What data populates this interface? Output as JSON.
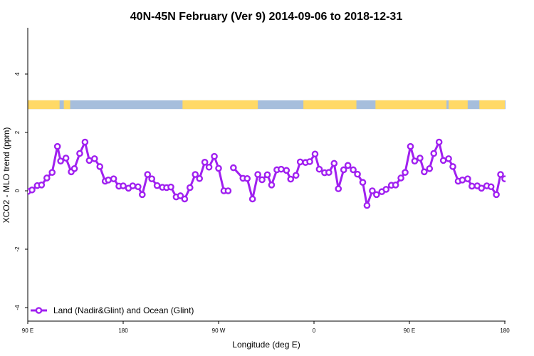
{
  "chart_data": {
    "type": "line",
    "title": "40N-45N February (Ver 9)   2014-09-06 to 2018-12-31",
    "xlabel": "Longitude (deg E)",
    "ylabel": "XCO2 - MLO trend (ppm)",
    "xlim": [
      90,
      450
    ],
    "ylim": [
      -4.5,
      5.6
    ],
    "x_ticks": [
      {
        "value": 90,
        "label": "90 E"
      },
      {
        "value": 180,
        "label": "180"
      },
      {
        "value": 270,
        "label": "90 W"
      },
      {
        "value": 360,
        "label": "0"
      },
      {
        "value": 450,
        "label": "90 E"
      },
      {
        "value": 540,
        "label": "180"
      }
    ],
    "y_ticks": [
      {
        "value": -4,
        "label": "-4"
      },
      {
        "value": -2,
        "label": "-2"
      },
      {
        "value": 0,
        "label": "0"
      },
      {
        "value": 2,
        "label": "2"
      },
      {
        "value": 4,
        "label": "4"
      }
    ],
    "grid": false,
    "legend_position": "bottom-left",
    "land_ocean_strip": {
      "y_range": [
        2.8,
        3.1
      ],
      "land_color": "#FFD966",
      "ocean_color": "#A6BEDC",
      "land_segments": [
        [
          90,
          120
        ],
        [
          124,
          130
        ],
        [
          236,
          307
        ],
        [
          350,
          400
        ],
        [
          418,
          485
        ],
        [
          487,
          505
        ],
        [
          516,
          540
        ]
      ]
    },
    "series": [
      {
        "name": "Land (Nadir&Glint) and Ocean (Glint)",
        "color": "#A020F0",
        "segments": [
          {
            "x": [
              90,
              94,
              99,
              103,
              108,
              113,
              118,
              121,
              126,
              131,
              134,
              139,
              144,
              148,
              153,
              158,
              163,
              166,
              171,
              176,
              180,
              185,
              189,
              194,
              198,
              203,
              207,
              212,
              217,
              221,
              225,
              230,
              234,
              238,
              243,
              248,
              252,
              257,
              261,
              266,
              270,
              275,
              279
            ],
            "y": [
              -0.02,
              0.03,
              0.18,
              0.2,
              0.44,
              0.63,
              1.52,
              1.02,
              1.12,
              0.65,
              0.76,
              1.28,
              1.67,
              1.04,
              1.1,
              0.83,
              0.33,
              0.37,
              0.41,
              0.16,
              0.17,
              0.09,
              0.17,
              0.14,
              -0.13,
              0.56,
              0.41,
              0.18,
              0.12,
              0.11,
              0.13,
              -0.21,
              -0.17,
              -0.28,
              0.11,
              0.56,
              0.42,
              0.98,
              0.81,
              1.18,
              0.77,
              0.0,
              0.0
            ]
          },
          {
            "x": [
              284,
              293,
              297,
              302,
              307,
              311,
              316,
              320,
              325,
              329,
              334,
              338,
              343,
              347,
              352,
              356,
              361,
              365,
              370,
              374,
              379,
              383,
              388,
              392,
              397,
              401,
              406,
              410,
              415,
              419,
              424,
              428,
              433,
              437,
              442,
              446,
              451,
              455,
              460,
              464,
              469,
              473,
              478,
              482,
              487,
              491,
              496,
              500,
              505,
              509,
              514,
              518,
              523,
              527,
              532,
              536,
              540
            ],
            "y": [
              0.79,
              0.43,
              0.42,
              -0.28,
              0.56,
              0.38,
              0.55,
              0.2,
              0.72,
              0.74,
              0.7,
              0.4,
              0.53,
              0.99,
              0.97,
              1.0,
              1.26,
              0.74,
              0.62,
              0.63,
              0.94,
              0.07,
              0.72,
              0.87,
              0.72,
              0.57,
              0.29,
              -0.5,
              0.0,
              -0.13,
              -0.03,
              0.05,
              0.19,
              0.2,
              0.44,
              0.63,
              1.52,
              1.02,
              1.12,
              0.65,
              0.76,
              1.28,
              1.67,
              1.04,
              1.1,
              0.83,
              0.33,
              0.37,
              0.41,
              0.16,
              0.17,
              0.09,
              0.17,
              0.14,
              -0.13,
              0.56,
              0.41
            ]
          }
        ]
      }
    ]
  }
}
